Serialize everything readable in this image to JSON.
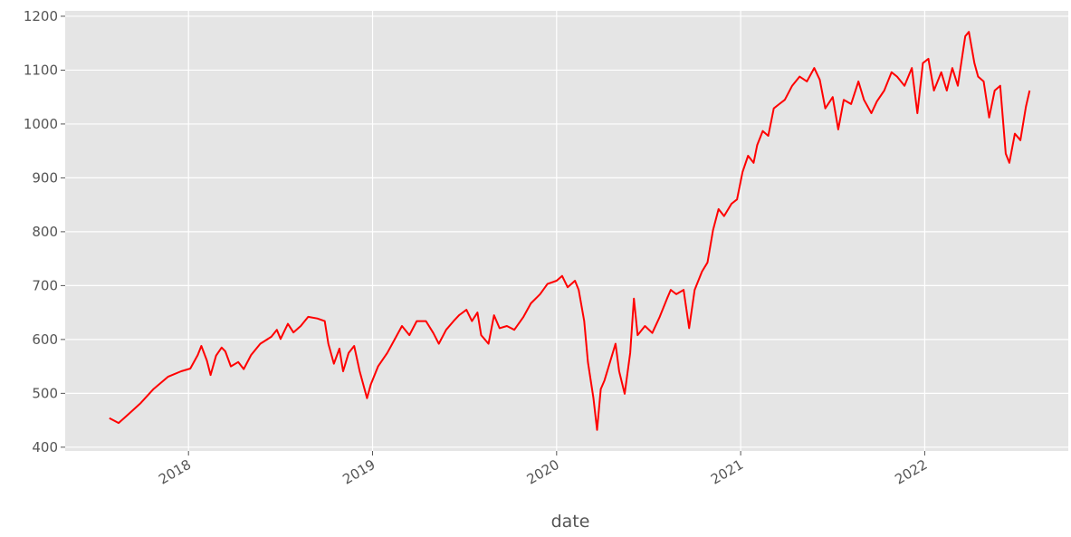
{
  "chart_data": {
    "type": "line",
    "xlabel": "date",
    "x": [
      2017.57,
      2017.62,
      2017.67,
      2017.74,
      2017.81,
      2017.89,
      2017.96,
      2018.01,
      2018.05,
      2018.07,
      2018.1,
      2018.12,
      2018.15,
      2018.18,
      2018.2,
      2018.23,
      2018.27,
      2018.3,
      2018.34,
      2018.39,
      2018.45,
      2018.48,
      2018.5,
      2018.54,
      2018.57,
      2018.61,
      2018.65,
      2018.7,
      2018.74,
      2018.76,
      2018.79,
      2018.82,
      2018.84,
      2018.87,
      2018.9,
      2018.93,
      2018.97,
      2018.99,
      2019.03,
      2019.08,
      2019.12,
      2019.16,
      2019.2,
      2019.24,
      2019.29,
      2019.33,
      2019.36,
      2019.4,
      2019.44,
      2019.47,
      2019.51,
      2019.54,
      2019.57,
      2019.59,
      2019.63,
      2019.66,
      2019.69,
      2019.73,
      2019.77,
      2019.82,
      2019.86,
      2019.91,
      2019.95,
      2020.0,
      2020.03,
      2020.06,
      2020.1,
      2020.12,
      2020.15,
      2020.17,
      2020.2,
      2020.22,
      2020.24,
      2020.26,
      2020.29,
      2020.32,
      2020.34,
      2020.37,
      2020.4,
      2020.42,
      2020.44,
      2020.48,
      2020.52,
      2020.56,
      2020.6,
      2020.62,
      2020.65,
      2020.69,
      2020.72,
      2020.75,
      2020.79,
      2020.82,
      2020.85,
      2020.88,
      2020.91,
      2020.95,
      2020.98,
      2021.01,
      2021.04,
      2021.07,
      2021.09,
      2021.12,
      2021.15,
      2021.18,
      2021.21,
      2021.24,
      2021.28,
      2021.32,
      2021.36,
      2021.4,
      2021.43,
      2021.46,
      2021.5,
      2021.53,
      2021.56,
      2021.6,
      2021.64,
      2021.67,
      2021.71,
      2021.74,
      2021.78,
      2021.82,
      2021.85,
      2021.89,
      2021.93,
      2021.96,
      2021.99,
      2022.02,
      2022.05,
      2022.09,
      2022.12,
      2022.15,
      2022.18,
      2022.22,
      2022.24,
      2022.27,
      2022.29,
      2022.32,
      2022.35,
      2022.38,
      2022.41,
      2022.44,
      2022.46,
      2022.49,
      2022.52,
      2022.55,
      2022.57
    ],
    "series": [
      {
        "color": "#ff0000",
        "values": [
          454,
          445,
          460,
          482,
          508,
          531,
          541,
          546,
          571,
          588,
          561,
          534,
          570,
          585,
          578,
          550,
          558,
          545,
          571,
          592,
          605,
          618,
          601,
          629,
          613,
          625,
          642,
          639,
          634,
          592,
          555,
          583,
          541,
          575,
          588,
          541,
          491,
          516,
          550,
          575,
          600,
          625,
          608,
          634,
          634,
          612,
          592,
          618,
          634,
          645,
          655,
          634,
          650,
          608,
          592,
          645,
          621,
          625,
          618,
          642,
          667,
          684,
          703,
          709,
          718,
          697,
          709,
          692,
          634,
          558,
          491,
          432,
          508,
          524,
          558,
          592,
          541,
          499,
          575,
          676,
          608,
          625,
          612,
          642,
          676,
          692,
          684,
          692,
          621,
          692,
          726,
          743,
          803,
          842,
          829,
          852,
          860,
          911,
          941,
          928,
          961,
          987,
          978,
          1029,
          1037,
          1045,
          1071,
          1088,
          1079,
          1104,
          1082,
          1029,
          1050,
          990,
          1045,
          1037,
          1079,
          1045,
          1020,
          1042,
          1062,
          1096,
          1088,
          1071,
          1104,
          1020,
          1113,
          1121,
          1062,
          1096,
          1062,
          1104,
          1071,
          1163,
          1171,
          1113,
          1088,
          1079,
          1012,
          1062,
          1071,
          945,
          928,
          982,
          970,
          1032,
          1062
        ]
      }
    ],
    "xlim": [
      2017.33,
      2022.78
    ],
    "xticks": [
      2018,
      2019,
      2020,
      2021,
      2022
    ],
    "ylim": [
      393,
      1210
    ],
    "yticks": [
      400,
      500,
      600,
      700,
      800,
      900,
      1000,
      1100,
      1200
    ],
    "grid": true
  }
}
